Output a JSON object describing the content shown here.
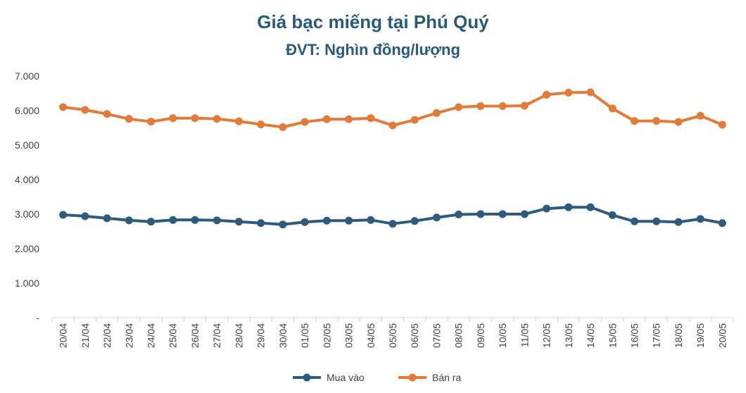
{
  "chart_data": {
    "type": "line",
    "title": "Giá bạc miếng tại Phú Quý",
    "subtitle": "ĐVT: Nghìn đồng/lượng",
    "categories": [
      "20/04",
      "21/04",
      "22/04",
      "23/04",
      "24/04",
      "25/04",
      "26/04",
      "27/04",
      "28/04",
      "29/04",
      "30/04",
      "01/05",
      "02/05",
      "03/05",
      "04/05",
      "05/05",
      "06/05",
      "07/05",
      "08/05",
      "09/05",
      "10/05",
      "11/05",
      "12/05",
      "13/05",
      "14/05",
      "15/05",
      "16/05",
      "17/05",
      "18/05",
      "19/05",
      "20/05"
    ],
    "series": [
      {
        "name": "Mua vào",
        "color": "#2e5b7d",
        "values": [
          2980,
          2940,
          2880,
          2820,
          2780,
          2830,
          2830,
          2820,
          2780,
          2740,
          2700,
          2770,
          2810,
          2810,
          2830,
          2720,
          2800,
          2900,
          2990,
          3000,
          3000,
          3000,
          3160,
          3200,
          3200,
          2970,
          2790,
          2790,
          2770,
          2860,
          2740
        ]
      },
      {
        "name": "Bán ra",
        "color": "#e07b39",
        "values": [
          6100,
          6020,
          5900,
          5760,
          5680,
          5780,
          5780,
          5760,
          5690,
          5600,
          5520,
          5670,
          5750,
          5750,
          5780,
          5570,
          5730,
          5930,
          6100,
          6130,
          6130,
          6140,
          6460,
          6520,
          6530,
          6060,
          5700,
          5700,
          5670,
          5850,
          5590
        ]
      }
    ],
    "yticks": [
      "-",
      "1.000",
      "2.000",
      "3.000",
      "4.000",
      "5.000",
      "6.000",
      "7.000"
    ],
    "ylim": [
      0,
      7000
    ],
    "grid": false,
    "legend_position": "bottom"
  }
}
